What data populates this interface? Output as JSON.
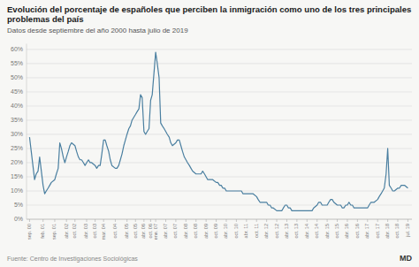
{
  "chart_data": {
    "type": "line",
    "title": "Evolución del porcentaje de españoles que perciben la inmigración como uno de los tres principales\nproblemas del país",
    "subtitle": "Datos desde septiembre del año 2000 hasta julio de 2019",
    "annotations": [
      "Fuente: Centro de Investigaciones Sociológicas",
      "MD"
    ],
    "color": "#4a7fa0",
    "grid": true,
    "xlim": [
      2000.6,
      2019.7
    ],
    "ylim": [
      0,
      62
    ],
    "yticks": [
      {
        "value": 0,
        "label": "0%"
      },
      {
        "value": 5,
        "label": "5%"
      },
      {
        "value": 10,
        "label": "10%"
      },
      {
        "value": 15,
        "label": "15%"
      },
      {
        "value": 20,
        "label": "20%"
      },
      {
        "value": 25,
        "label": "25%"
      },
      {
        "value": 30,
        "label": "30%"
      },
      {
        "value": 35,
        "label": "35%"
      },
      {
        "value": 40,
        "label": "40%"
      },
      {
        "value": 45,
        "label": "45%"
      },
      {
        "value": 50,
        "label": "50%"
      },
      {
        "value": 55,
        "label": "55%"
      },
      {
        "value": 60,
        "label": "60%"
      }
    ],
    "xticks": [
      {
        "value": 2000.75,
        "label": "sep.\n00"
      },
      {
        "value": 2001.42,
        "label": "feb.\n01"
      },
      {
        "value": 2002.0,
        "label": "sep.\n01"
      },
      {
        "value": 2002.58,
        "label": "abr.\n02"
      },
      {
        "value": 2003.0,
        "label": "oct.\n02"
      },
      {
        "value": 2003.58,
        "label": "abr.\n03"
      },
      {
        "value": 2004.0,
        "label": "oct.\n03"
      },
      {
        "value": 2004.42,
        "label": "mar.\n04"
      },
      {
        "value": 2005.0,
        "label": "oct.\n04"
      },
      {
        "value": 2005.58,
        "label": "abr.\n05"
      },
      {
        "value": 2006.0,
        "label": "oct.\n05"
      },
      {
        "value": 2006.42,
        "label": "abr.\n06"
      },
      {
        "value": 2006.75,
        "label": "oct.\n06"
      },
      {
        "value": 2007.0,
        "label": "ene.\n07"
      },
      {
        "value": 2007.5,
        "label": "abr.\n07"
      },
      {
        "value": 2008.0,
        "label": "oct.\n07"
      },
      {
        "value": 2008.5,
        "label": "abr.\n08"
      },
      {
        "value": 2009.0,
        "label": "oct.\n08"
      },
      {
        "value": 2009.5,
        "label": "abr.\n09"
      },
      {
        "value": 2010.0,
        "label": "oct.\n09"
      },
      {
        "value": 2010.5,
        "label": "abr.\n10"
      },
      {
        "value": 2011.0,
        "label": "oct.\n10"
      },
      {
        "value": 2011.5,
        "label": "abr.\n11"
      },
      {
        "value": 2012.0,
        "label": "oct.\n11"
      },
      {
        "value": 2012.5,
        "label": "abr.\n12"
      },
      {
        "value": 2013.0,
        "label": "oct.\n12"
      },
      {
        "value": 2013.5,
        "label": "abr.\n13"
      },
      {
        "value": 2014.0,
        "label": "oct.\n13"
      },
      {
        "value": 2014.5,
        "label": "abr.\n14"
      },
      {
        "value": 2015.0,
        "label": "oct.\n14"
      },
      {
        "value": 2015.5,
        "label": "abr.\n15"
      },
      {
        "value": 2016.0,
        "label": "oct.\n15"
      },
      {
        "value": 2016.5,
        "label": "abr.\n16"
      },
      {
        "value": 2017.0,
        "label": "oct.\n16"
      },
      {
        "value": 2017.5,
        "label": "abr.\n17"
      },
      {
        "value": 2018.0,
        "label": "oct.\n17"
      },
      {
        "value": 2018.5,
        "label": "abr.\n18"
      },
      {
        "value": 2019.0,
        "label": "oct.\n18"
      },
      {
        "value": 2019.5,
        "label": "jul.\n19"
      }
    ],
    "x": [
      2000.75,
      2001.0,
      2001.08,
      2001.17,
      2001.25,
      2001.42,
      2001.5,
      2001.58,
      2001.67,
      2001.75,
      2001.83,
      2002.0,
      2002.08,
      2002.17,
      2002.25,
      2002.33,
      2002.42,
      2002.5,
      2002.58,
      2002.67,
      2002.75,
      2002.83,
      2003.0,
      2003.08,
      2003.17,
      2003.25,
      2003.33,
      2003.42,
      2003.5,
      2003.58,
      2003.67,
      2003.75,
      2003.83,
      2004.0,
      2004.08,
      2004.17,
      2004.25,
      2004.33,
      2004.42,
      2004.5,
      2004.58,
      2004.67,
      2004.75,
      2004.83,
      2005.0,
      2005.08,
      2005.17,
      2005.25,
      2005.33,
      2005.42,
      2005.5,
      2005.58,
      2005.67,
      2005.75,
      2005.83,
      2006.0,
      2006.08,
      2006.17,
      2006.25,
      2006.33,
      2006.42,
      2006.5,
      2006.58,
      2006.67,
      2006.75,
      2006.83,
      2007.0,
      2007.08,
      2007.17,
      2007.25,
      2007.33,
      2007.42,
      2007.5,
      2007.58,
      2007.67,
      2007.75,
      2007.83,
      2008.0,
      2008.08,
      2008.17,
      2008.25,
      2008.33,
      2008.42,
      2008.5,
      2008.58,
      2008.67,
      2008.75,
      2008.83,
      2009.0,
      2009.08,
      2009.17,
      2009.25,
      2009.33,
      2009.42,
      2009.5,
      2009.58,
      2009.67,
      2009.75,
      2009.83,
      2010.0,
      2010.08,
      2010.17,
      2010.25,
      2010.33,
      2010.42,
      2010.5,
      2010.58,
      2010.67,
      2010.75,
      2010.83,
      2011.0,
      2011.08,
      2011.17,
      2011.25,
      2011.33,
      2011.42,
      2011.5,
      2011.58,
      2011.67,
      2011.75,
      2011.83,
      2012.0,
      2012.08,
      2012.17,
      2012.25,
      2012.33,
      2012.42,
      2012.5,
      2012.58,
      2012.67,
      2012.75,
      2012.83,
      2013.0,
      2013.08,
      2013.17,
      2013.25,
      2013.33,
      2013.42,
      2013.5,
      2013.58,
      2013.67,
      2013.75,
      2013.83,
      2014.0,
      2014.08,
      2014.17,
      2014.25,
      2014.33,
      2014.42,
      2014.5,
      2014.58,
      2014.67,
      2014.75,
      2014.83,
      2015.0,
      2015.08,
      2015.17,
      2015.25,
      2015.33,
      2015.42,
      2015.5,
      2015.58,
      2015.67,
      2015.75,
      2015.83,
      2016.0,
      2016.08,
      2016.17,
      2016.25,
      2016.33,
      2016.42,
      2016.5,
      2016.58,
      2016.67,
      2016.75,
      2016.83,
      2017.0,
      2017.08,
      2017.17,
      2017.25,
      2017.33,
      2017.42,
      2017.5,
      2017.58,
      2017.67,
      2017.75,
      2017.83,
      2018.0,
      2018.08,
      2018.17,
      2018.25,
      2018.33,
      2018.42,
      2018.5,
      2018.58,
      2018.67,
      2018.75,
      2018.83,
      2019.0,
      2019.08,
      2019.17,
      2019.25,
      2019.33,
      2019.5
    ],
    "values": [
      29.0,
      14.0,
      16.0,
      17.0,
      22.0,
      12.0,
      9.0,
      10.0,
      11.0,
      12.0,
      13.0,
      14.0,
      16.0,
      18.0,
      27.0,
      25.0,
      22.0,
      20.0,
      22.0,
      24.0,
      26.0,
      27.0,
      26.0,
      24.0,
      22.0,
      21.0,
      21.0,
      20.0,
      19.0,
      20.0,
      21.0,
      20.0,
      20.0,
      19.0,
      18.0,
      19.0,
      19.0,
      23.0,
      28.0,
      28.0,
      26.0,
      24.0,
      21.0,
      19.0,
      18.0,
      18.0,
      19.0,
      21.0,
      23.0,
      26.0,
      28.0,
      30.0,
      32.0,
      33.0,
      35.0,
      37.0,
      38.0,
      39.0,
      44.0,
      43.0,
      31.0,
      30.0,
      31.0,
      32.0,
      42.0,
      44.0,
      59.0,
      55.0,
      50.0,
      34.0,
      33.0,
      32.0,
      31.0,
      30.0,
      29.0,
      27.0,
      26.0,
      27.0,
      28.0,
      28.0,
      26.0,
      24.0,
      22.0,
      21.0,
      20.0,
      19.0,
      18.0,
      17.0,
      16.0,
      16.0,
      16.0,
      16.0,
      17.0,
      16.0,
      15.0,
      14.0,
      14.0,
      14.0,
      14.0,
      13.0,
      13.0,
      12.0,
      12.0,
      11.0,
      11.0,
      10.0,
      10.0,
      10.0,
      10.0,
      10.0,
      10.0,
      10.0,
      10.0,
      10.0,
      9.0,
      9.0,
      9.0,
      9.0,
      9.0,
      9.0,
      9.0,
      8.0,
      7.0,
      6.0,
      6.0,
      6.0,
      6.0,
      6.0,
      5.0,
      5.0,
      4.0,
      4.0,
      3.0,
      3.0,
      3.0,
      3.0,
      4.0,
      5.0,
      5.0,
      4.0,
      4.0,
      3.0,
      3.0,
      3.0,
      3.0,
      3.0,
      3.0,
      3.0,
      3.0,
      3.0,
      3.0,
      3.0,
      3.0,
      4.0,
      5.0,
      6.0,
      6.0,
      5.0,
      5.0,
      5.0,
      5.0,
      6.0,
      7.0,
      7.0,
      6.0,
      5.0,
      5.0,
      5.0,
      4.0,
      4.0,
      5.0,
      5.0,
      6.0,
      5.0,
      5.0,
      4.0,
      4.0,
      4.0,
      4.0,
      4.0,
      4.0,
      4.0,
      4.0,
      5.0,
      6.0,
      6.0,
      6.0,
      7.0,
      8.0,
      9.0,
      10.0,
      11.0,
      16.0,
      25.0,
      12.0,
      11.0,
      10.0,
      10.0,
      11.0,
      11.0,
      12.0,
      12.0,
      12.0,
      11.0
    ]
  }
}
